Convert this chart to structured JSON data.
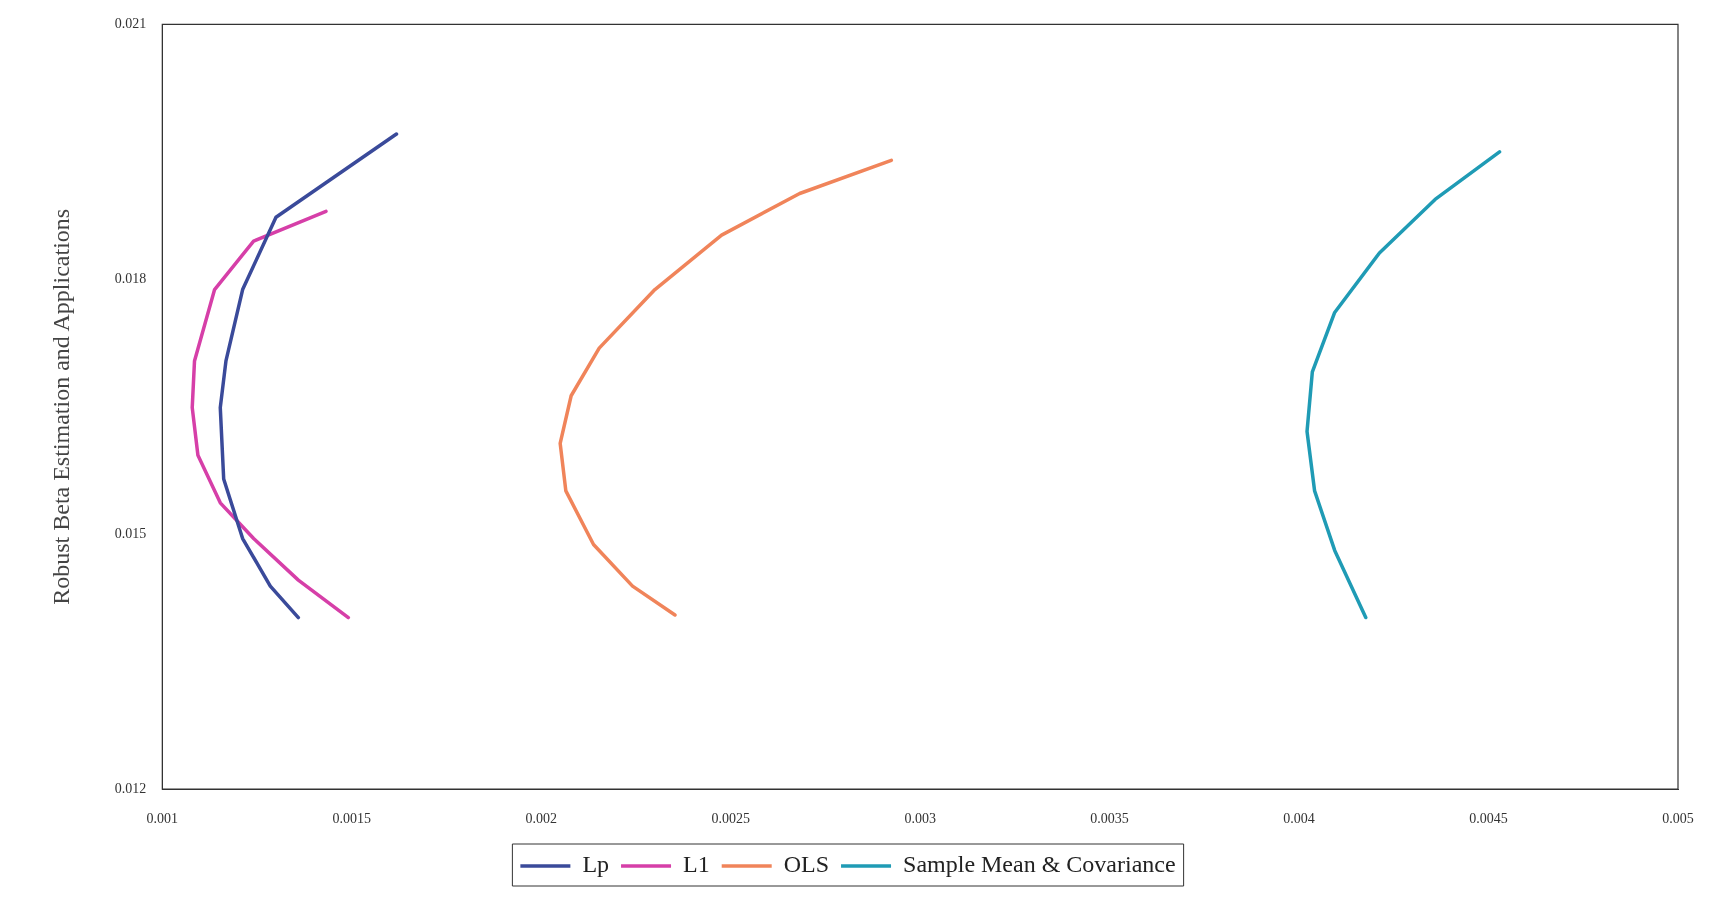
{
  "chart_data": {
    "type": "line",
    "ylabel": "Robust Beta Estimation and Applications",
    "xlim": [
      0.001,
      0.005
    ],
    "xticks": [
      0.001,
      0.0015,
      0.002,
      0.0025,
      0.003,
      0.0035,
      0.004,
      0.0045,
      0.005
    ],
    "ylim": [
      0.012,
      0.021
    ],
    "yticks": [
      0.012,
      0.015,
      0.018,
      0.021
    ],
    "grid": false,
    "legend": "bottom",
    "marker": "none",
    "line_style": "solid",
    "series": [
      {
        "name": "Lp",
        "color": "#3a4a9a",
        "x": [
          0.001618,
          0.0013,
          0.001212,
          0.001168,
          0.001153,
          0.001162,
          0.001212,
          0.001285,
          0.001359
        ],
        "values": [
          0.01971,
          0.01873,
          0.01788,
          0.01704,
          0.01649,
          0.01565,
          0.01495,
          0.01439,
          0.01402
        ]
      },
      {
        "name": "L1",
        "color": "#d63fa8",
        "x": [
          0.001432,
          0.001241,
          0.001138,
          0.001085,
          0.001079,
          0.001094,
          0.001153,
          0.001241,
          0.001359,
          0.001491
        ],
        "values": [
          0.0188,
          0.01845,
          0.01788,
          0.01704,
          0.01649,
          0.01593,
          0.01537,
          0.01495,
          0.01446,
          0.01402
        ]
      },
      {
        "name": "OLS",
        "color": "#f0845a",
        "x": [
          0.002924,
          0.002682,
          0.002476,
          0.0023,
          0.002153,
          0.002079,
          0.00205,
          0.002065,
          0.002138,
          0.002241,
          0.002353
        ],
        "values": [
          0.0194,
          0.01901,
          0.01852,
          0.01788,
          0.01719,
          0.01663,
          0.01607,
          0.01551,
          0.01488,
          0.01439,
          0.01405
        ]
      },
      {
        "name": "Sample Mean & Covariance",
        "color": "#1f9bb5",
        "x": [
          0.004529,
          0.004359,
          0.004212,
          0.004094,
          0.004035,
          0.004021,
          0.004041,
          0.004094,
          0.004176
        ],
        "values": [
          0.0195,
          0.01894,
          0.01831,
          0.01761,
          0.01691,
          0.01621,
          0.01551,
          0.01481,
          0.01402
        ]
      }
    ]
  }
}
